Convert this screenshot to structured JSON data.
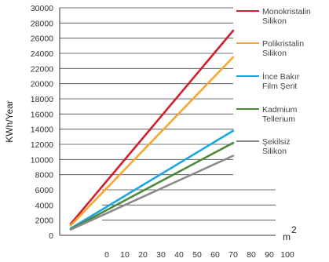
{
  "chart_data": {
    "type": "line",
    "title": "",
    "ylabel": "KWh/Year",
    "xlabel_main": "m",
    "xlabel_sup": "2",
    "yticks": [
      "30000",
      "28000",
      "26000",
      "24000",
      "22000",
      "20000",
      "18000",
      "16000",
      "14000",
      "12000",
      "10000",
      "8000",
      "6000",
      "4000",
      "2000",
      "0"
    ],
    "xticks": [
      "0",
      "10",
      "20",
      "30",
      "40",
      "50",
      "60",
      "70",
      "80",
      "90",
      "100"
    ],
    "ylim": [
      0,
      30000
    ],
    "xlim": [
      0,
      100
    ],
    "grid": "horizontal",
    "legend_position": "right",
    "series": [
      {
        "name": "Monokristalin Silikon",
        "color": "#d0202e",
        "x": [
          0,
          75
        ],
        "y": [
          1500,
          27000
        ]
      },
      {
        "name": "Polikristalin Silikon",
        "color": "#f7a634",
        "x": [
          0,
          75
        ],
        "y": [
          1300,
          23500
        ]
      },
      {
        "name": "İnce Bakır Film Şerit",
        "color": "#1aa7e0",
        "x": [
          0,
          75
        ],
        "y": [
          900,
          13800
        ]
      },
      {
        "name": "Kadmium Tellerium",
        "color": "#4a8a3a",
        "x": [
          0,
          75
        ],
        "y": [
          800,
          12200
        ]
      },
      {
        "name": "Şekilsiz Silikon",
        "color": "#8a8a8a",
        "x": [
          0,
          75
        ],
        "y": [
          750,
          10500
        ]
      }
    ],
    "legend": [
      {
        "line1": "Monokristalin",
        "line2": "Silikon"
      },
      {
        "line1": "Polikristalin",
        "line2": "Silikon"
      },
      {
        "line1": "İnce Bakır",
        "line2": "Film Şerit"
      },
      {
        "line1": "Kadmium",
        "line2": "Tellerium"
      },
      {
        "line1": "Şekilsiz",
        "line2": "Silikon"
      }
    ]
  }
}
